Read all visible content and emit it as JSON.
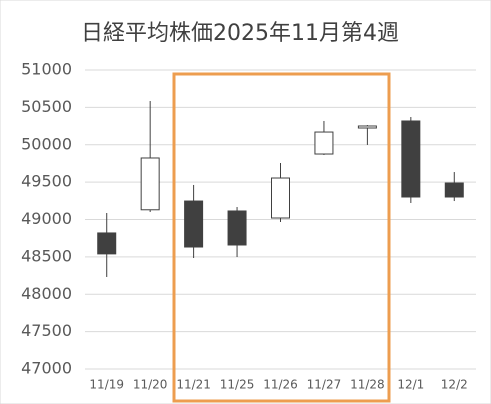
{
  "chart_data": {
    "type": "candlestick",
    "title": "日経平均株価2025年11月第4週",
    "categories": [
      "11/19",
      "11/20",
      "11/21",
      "11/25",
      "11/26",
      "11/27",
      "11/28",
      "12/1",
      "12/2"
    ],
    "open": [
      48820,
      49130,
      49247,
      49114,
      49020,
      49876,
      50224,
      50318,
      49488
    ],
    "high": [
      49087,
      50585,
      49462,
      49167,
      49756,
      50318,
      50264,
      50371,
      49635
    ],
    "low": [
      48231,
      49100,
      48485,
      48498,
      48966,
      49863,
      49997,
      49221,
      49247
    ],
    "close": [
      48540,
      49823,
      48632,
      48659,
      49555,
      50170,
      50251,
      49301,
      49301
    ],
    "up_color": "#ffffff",
    "down_color": "#404040",
    "ylim": [
      47000,
      51000
    ],
    "yticks": [
      47000,
      47500,
      48000,
      48500,
      49000,
      49500,
      50000,
      50500,
      51000
    ],
    "grid": true
  }
}
